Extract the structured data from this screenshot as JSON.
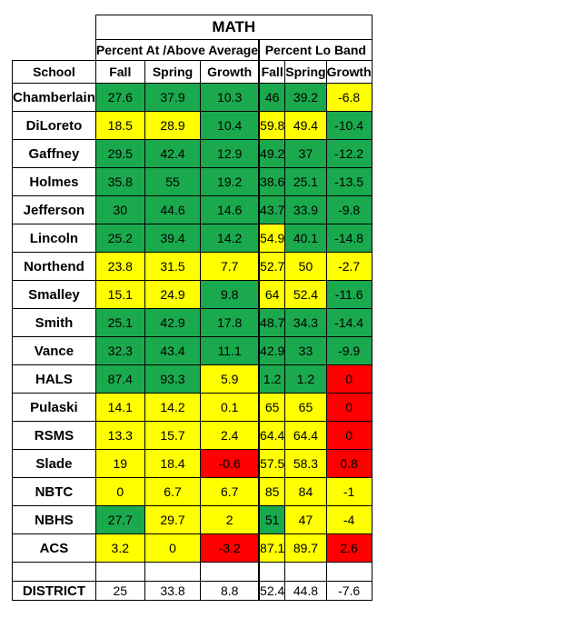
{
  "title": "MATH",
  "groups": {
    "above": "Percent At /Above Average",
    "lo": "Percent Lo Band"
  },
  "headers": {
    "school": "School",
    "cols": [
      "Fall",
      "Spring",
      "Growth",
      "Fall",
      "Spring",
      "Growth"
    ]
  },
  "colors": {
    "green": "#1aa94d",
    "yellow": "#ffff00",
    "red": "#ff0000",
    "white": "#ffffff"
  },
  "rows": [
    {
      "school": "Chamberlain",
      "cells": [
        {
          "v": "27.6",
          "c": "green"
        },
        {
          "v": "37.9",
          "c": "green"
        },
        {
          "v": "10.3",
          "c": "green"
        },
        {
          "v": "46",
          "c": "green"
        },
        {
          "v": "39.2",
          "c": "green"
        },
        {
          "v": "-6.8",
          "c": "yellow"
        }
      ]
    },
    {
      "school": "DiLoreto",
      "cells": [
        {
          "v": "18.5",
          "c": "yellow"
        },
        {
          "v": "28.9",
          "c": "yellow"
        },
        {
          "v": "10.4",
          "c": "green"
        },
        {
          "v": "59.8",
          "c": "yellow"
        },
        {
          "v": "49.4",
          "c": "yellow"
        },
        {
          "v": "-10.4",
          "c": "green"
        }
      ]
    },
    {
      "school": "Gaffney",
      "cells": [
        {
          "v": "29.5",
          "c": "green"
        },
        {
          "v": "42.4",
          "c": "green"
        },
        {
          "v": "12.9",
          "c": "green"
        },
        {
          "v": "49.2",
          "c": "green"
        },
        {
          "v": "37",
          "c": "green"
        },
        {
          "v": "-12.2",
          "c": "green"
        }
      ]
    },
    {
      "school": "Holmes",
      "cells": [
        {
          "v": "35.8",
          "c": "green"
        },
        {
          "v": "55",
          "c": "green"
        },
        {
          "v": "19.2",
          "c": "green"
        },
        {
          "v": "38.6",
          "c": "green"
        },
        {
          "v": "25.1",
          "c": "green"
        },
        {
          "v": "-13.5",
          "c": "green"
        }
      ]
    },
    {
      "school": "Jefferson",
      "cells": [
        {
          "v": "30",
          "c": "green"
        },
        {
          "v": "44.6",
          "c": "green"
        },
        {
          "v": "14.6",
          "c": "green"
        },
        {
          "v": "43.7",
          "c": "green"
        },
        {
          "v": "33.9",
          "c": "green"
        },
        {
          "v": "-9.8",
          "c": "green"
        }
      ]
    },
    {
      "school": "Lincoln",
      "cells": [
        {
          "v": "25.2",
          "c": "green"
        },
        {
          "v": "39.4",
          "c": "green"
        },
        {
          "v": "14.2",
          "c": "green"
        },
        {
          "v": "54.9",
          "c": "yellow"
        },
        {
          "v": "40.1",
          "c": "green"
        },
        {
          "v": "-14.8",
          "c": "green"
        }
      ]
    },
    {
      "school": "Northend",
      "cells": [
        {
          "v": "23.8",
          "c": "yellow"
        },
        {
          "v": "31.5",
          "c": "yellow"
        },
        {
          "v": "7.7",
          "c": "yellow"
        },
        {
          "v": "52.7",
          "c": "yellow"
        },
        {
          "v": "50",
          "c": "yellow"
        },
        {
          "v": "-2.7",
          "c": "yellow"
        }
      ]
    },
    {
      "school": "Smalley",
      "cells": [
        {
          "v": "15.1",
          "c": "yellow"
        },
        {
          "v": "24.9",
          "c": "yellow"
        },
        {
          "v": "9.8",
          "c": "green"
        },
        {
          "v": "64",
          "c": "yellow"
        },
        {
          "v": "52.4",
          "c": "yellow"
        },
        {
          "v": "-11.6",
          "c": "green"
        }
      ]
    },
    {
      "school": "Smith",
      "cells": [
        {
          "v": "25.1",
          "c": "green"
        },
        {
          "v": "42.9",
          "c": "green"
        },
        {
          "v": "17.8",
          "c": "green"
        },
        {
          "v": "48.7",
          "c": "green"
        },
        {
          "v": "34.3",
          "c": "green"
        },
        {
          "v": "-14.4",
          "c": "green"
        }
      ]
    },
    {
      "school": "Vance",
      "cells": [
        {
          "v": "32.3",
          "c": "green"
        },
        {
          "v": "43.4",
          "c": "green"
        },
        {
          "v": "11.1",
          "c": "green"
        },
        {
          "v": "42.9",
          "c": "green"
        },
        {
          "v": "33",
          "c": "green"
        },
        {
          "v": "-9.9",
          "c": "green"
        }
      ]
    },
    {
      "school": "HALS",
      "cells": [
        {
          "v": "87.4",
          "c": "green"
        },
        {
          "v": "93.3",
          "c": "green"
        },
        {
          "v": "5.9",
          "c": "yellow"
        },
        {
          "v": "1.2",
          "c": "green"
        },
        {
          "v": "1.2",
          "c": "green"
        },
        {
          "v": "0",
          "c": "red"
        }
      ]
    },
    {
      "school": "Pulaski",
      "cells": [
        {
          "v": "14.1",
          "c": "yellow"
        },
        {
          "v": "14.2",
          "c": "yellow"
        },
        {
          "v": "0.1",
          "c": "yellow"
        },
        {
          "v": "65",
          "c": "yellow"
        },
        {
          "v": "65",
          "c": "yellow"
        },
        {
          "v": "0",
          "c": "red"
        }
      ]
    },
    {
      "school": "RSMS",
      "cells": [
        {
          "v": "13.3",
          "c": "yellow"
        },
        {
          "v": "15.7",
          "c": "yellow"
        },
        {
          "v": "2.4",
          "c": "yellow"
        },
        {
          "v": "64.4",
          "c": "yellow"
        },
        {
          "v": "64.4",
          "c": "yellow"
        },
        {
          "v": "0",
          "c": "red"
        }
      ]
    },
    {
      "school": "Slade",
      "cells": [
        {
          "v": "19",
          "c": "yellow"
        },
        {
          "v": "18.4",
          "c": "yellow"
        },
        {
          "v": "-0.6",
          "c": "red"
        },
        {
          "v": "57.5",
          "c": "yellow"
        },
        {
          "v": "58.3",
          "c": "yellow"
        },
        {
          "v": "0.8",
          "c": "red"
        }
      ]
    },
    {
      "school": "NBTC",
      "cells": [
        {
          "v": "0",
          "c": "yellow"
        },
        {
          "v": "6.7",
          "c": "yellow"
        },
        {
          "v": "6.7",
          "c": "yellow"
        },
        {
          "v": "85",
          "c": "yellow"
        },
        {
          "v": "84",
          "c": "yellow"
        },
        {
          "v": "-1",
          "c": "yellow"
        }
      ]
    },
    {
      "school": "NBHS",
      "cells": [
        {
          "v": "27.7",
          "c": "green"
        },
        {
          "v": "29.7",
          "c": "yellow"
        },
        {
          "v": "2",
          "c": "yellow"
        },
        {
          "v": "51",
          "c": "green"
        },
        {
          "v": "47",
          "c": "yellow"
        },
        {
          "v": "-4",
          "c": "yellow"
        }
      ]
    },
    {
      "school": "ACS",
      "cells": [
        {
          "v": "3.2",
          "c": "yellow"
        },
        {
          "v": "0",
          "c": "yellow"
        },
        {
          "v": "-3.2",
          "c": "red"
        },
        {
          "v": "87.1",
          "c": "yellow"
        },
        {
          "v": "89.7",
          "c": "yellow"
        },
        {
          "v": "2.6",
          "c": "red"
        }
      ]
    }
  ],
  "district": {
    "school": "DISTRICT",
    "cells": [
      {
        "v": "25",
        "c": "white"
      },
      {
        "v": "33.8",
        "c": "white"
      },
      {
        "v": "8.8",
        "c": "white"
      },
      {
        "v": "52.4",
        "c": "white"
      },
      {
        "v": "44.8",
        "c": "white"
      },
      {
        "v": "-7.6",
        "c": "white"
      }
    ]
  }
}
